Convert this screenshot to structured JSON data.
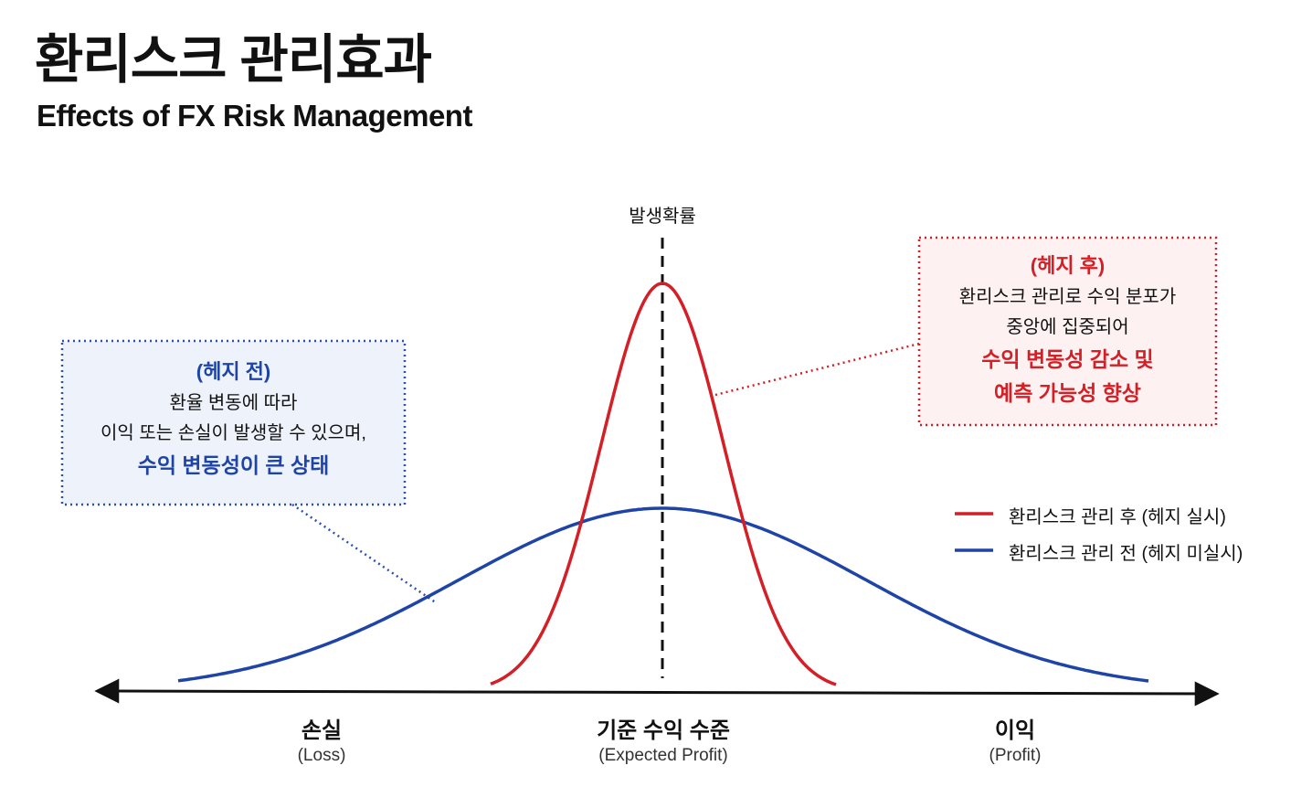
{
  "header": {
    "title": "환리스크 관리효과",
    "subtitle": "Effects of FX Risk Management"
  },
  "diagram": {
    "probability_label": "발생확률",
    "before": {
      "title": "(헤지 전)",
      "lines": [
        "환율 변동에 따라",
        "이익 또는 손실이 발생할 수 있으며,"
      ],
      "emphasis": [
        "수익 변동성이 큰 상태"
      ]
    },
    "after": {
      "title": "(헤지 후)",
      "lines": [
        "환리스크 관리로 수익 분포가",
        "중앙에 집중되어"
      ],
      "emphasis": [
        "수익 변동성 감소 및",
        "예측 가능성 향상"
      ]
    },
    "legend": [
      "환리스크 관리 후 (헤지 실시)",
      "환리스크 관리 전 (헤지 미실시)"
    ],
    "axis_labels": [
      {
        "label": "손실",
        "sub": "(Loss)"
      },
      {
        "label": "기준 수익 수준",
        "sub": "(Expected Profit)"
      },
      {
        "label": "이익",
        "sub": "(Profit)"
      }
    ]
  }
}
